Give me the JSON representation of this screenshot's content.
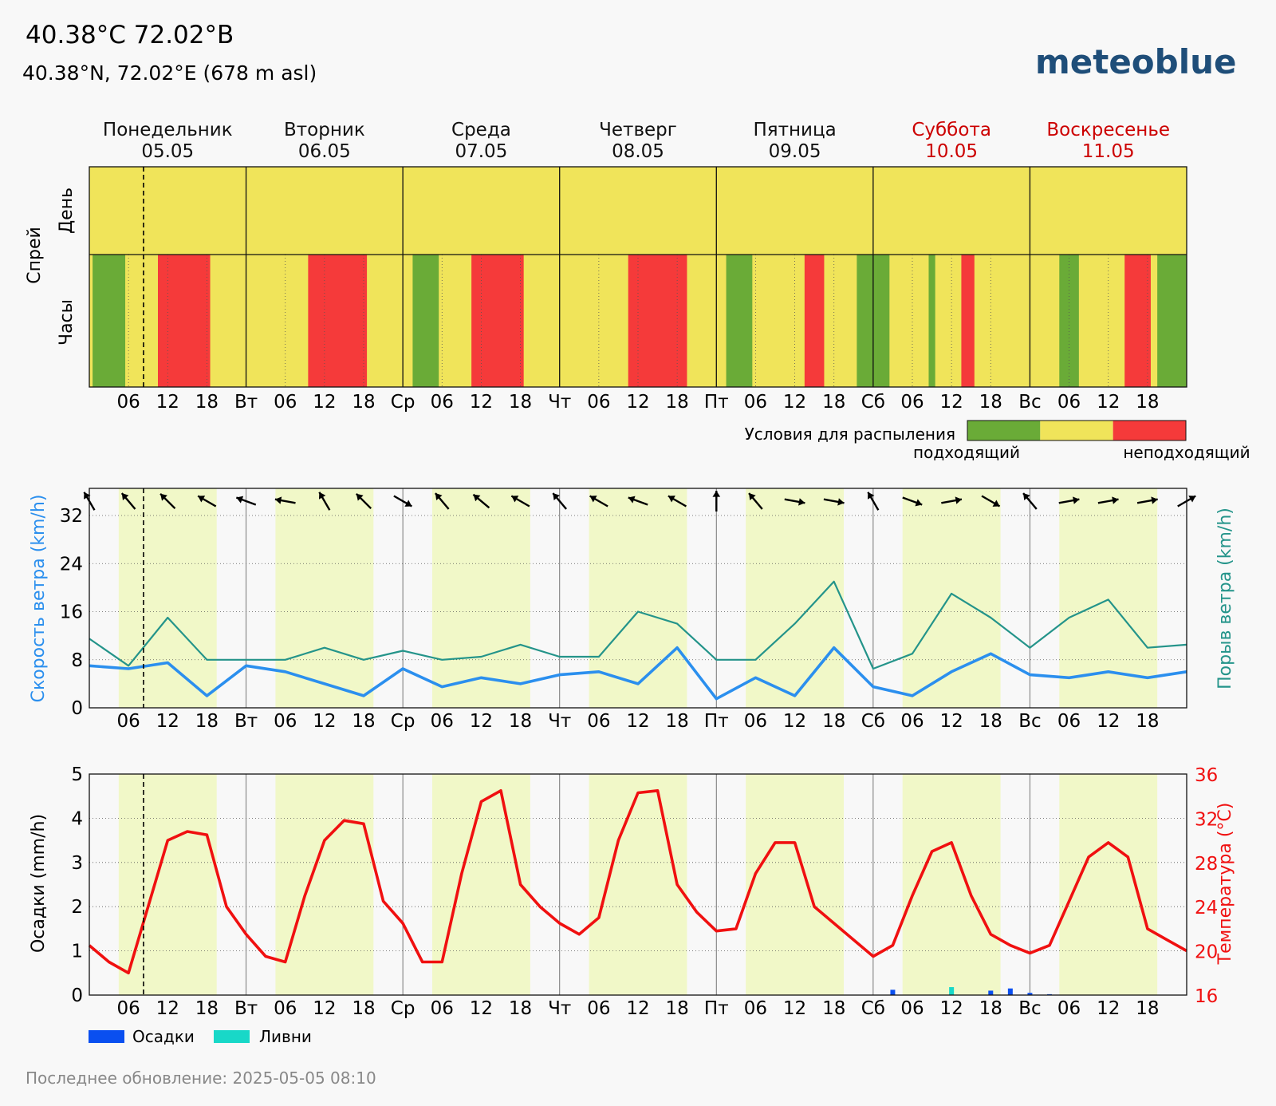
{
  "header": {
    "title": "40.38°C 72.02°B",
    "subtitle": "40.38°N, 72.02°E (678 m asl)",
    "logo": "meteoblue",
    "footer": "Последнее обновление: 2025-05-05 08:10"
  },
  "colors": {
    "good": "#6aab37",
    "medium": "#f0e45a",
    "bad": "#f53a3a",
    "wind": "#2b8fee",
    "gust": "#24948a",
    "temp": "#f01010",
    "precip": "#0a4ff0",
    "shower": "#18d8c8",
    "day_band": "#f1f8c8",
    "weekend": "#cc0000"
  },
  "days": [
    {
      "name": "Понедельник",
      "date": "05.05",
      "abbr": "",
      "weekend": false
    },
    {
      "name": "Вторник",
      "date": "06.05",
      "abbr": "Вт",
      "weekend": false
    },
    {
      "name": "Среда",
      "date": "07.05",
      "abbr": "Ср",
      "weekend": false
    },
    {
      "name": "Четверг",
      "date": "08.05",
      "abbr": "Чт",
      "weekend": false
    },
    {
      "name": "Пятница",
      "date": "09.05",
      "abbr": "Пт",
      "weekend": false
    },
    {
      "name": "Суббота",
      "date": "10.05",
      "abbr": "Сб",
      "weekend": true
    },
    {
      "name": "Воскресенье",
      "date": "11.05",
      "abbr": "Вс",
      "weekend": true
    }
  ],
  "hour_ticks": [
    "06",
    "12",
    "18"
  ],
  "spray": {
    "title": "Спрей",
    "row_day": "День",
    "row_hours": "Часы",
    "legend_title": "Условия для распыления",
    "legend_good": "подходящий",
    "legend_bad": "неподходящий",
    "day_ratings": [
      "medium",
      "medium",
      "medium",
      "medium",
      "medium",
      "medium",
      "medium"
    ],
    "segments": [
      {
        "from": 0.5,
        "to": 5.5,
        "rating": "good"
      },
      {
        "from": 10.5,
        "to": 18.5,
        "rating": "bad"
      },
      {
        "from": 33.5,
        "to": 42.5,
        "rating": "bad"
      },
      {
        "from": 49.5,
        "to": 53.5,
        "rating": "good"
      },
      {
        "from": 58.5,
        "to": 66.5,
        "rating": "bad"
      },
      {
        "from": 82.5,
        "to": 91.5,
        "rating": "bad"
      },
      {
        "from": 97.5,
        "to": 101.5,
        "rating": "good"
      },
      {
        "from": 109.5,
        "to": 112.5,
        "rating": "bad"
      },
      {
        "from": 117.5,
        "to": 120.5,
        "rating": "good"
      },
      {
        "from": 120.5,
        "to": 122.5,
        "rating": "good"
      },
      {
        "from": 128.5,
        "to": 129.5,
        "rating": "good"
      },
      {
        "from": 133.5,
        "to": 135.5,
        "rating": "bad"
      },
      {
        "from": 148.5,
        "to": 151.5,
        "rating": "good"
      },
      {
        "from": 158.5,
        "to": 162.5,
        "rating": "bad"
      },
      {
        "from": 163.5,
        "to": 168,
        "rating": "good"
      }
    ]
  },
  "chart_data": [
    {
      "type": "line",
      "title": "",
      "xlabel": "",
      "ylabel": "Скорость ветра (km/h)",
      "ylabel_right": "Порыв ветра (km/h)",
      "ylim": [
        0,
        36
      ],
      "yticks": [
        0,
        8,
        16,
        24,
        32
      ],
      "x": [
        0,
        6,
        12,
        18,
        24,
        30,
        36,
        42,
        48,
        54,
        60,
        66,
        72,
        78,
        84,
        90,
        96,
        102,
        108,
        114,
        120,
        126,
        132,
        138,
        144,
        150,
        156,
        162,
        168
      ],
      "series": [
        {
          "name": "Скорость ветра",
          "values": [
            7,
            6.5,
            7.5,
            2,
            7,
            6,
            4,
            2,
            6.5,
            3.5,
            5,
            4,
            5.5,
            6,
            4,
            10,
            1.5,
            5,
            2,
            10,
            3.5,
            2,
            6,
            9,
            5.5,
            5,
            6,
            5,
            6
          ]
        },
        {
          "name": "Порыв ветра",
          "values": [
            11.5,
            7,
            15,
            8,
            8,
            8,
            10,
            8,
            9.5,
            8,
            8.5,
            10.5,
            8.5,
            8.5,
            16,
            14,
            8,
            8,
            14,
            21,
            6.5,
            9,
            19,
            15,
            10,
            15,
            18,
            10,
            10.5
          ]
        }
      ],
      "wind_dir_deg": [
        330,
        320,
        315,
        300,
        290,
        280,
        330,
        315,
        120,
        320,
        310,
        300,
        320,
        300,
        290,
        300,
        0,
        320,
        100,
        100,
        330,
        110,
        80,
        120,
        320,
        80,
        80,
        80,
        60
      ]
    },
    {
      "type": "line",
      "title": "",
      "xlabel": "",
      "ylabel": "Осадки (mm/h)",
      "ylabel_right": "Температура (°C)",
      "ylim": [
        0,
        5
      ],
      "ylim_right": [
        16,
        36
      ],
      "yticks": [
        0,
        1,
        2,
        3,
        4,
        5
      ],
      "yticks_right": [
        16,
        20,
        24,
        28,
        32,
        36
      ],
      "x": [
        0,
        3,
        6,
        9,
        12,
        15,
        18,
        21,
        24,
        27,
        30,
        33,
        36,
        39,
        42,
        45,
        48,
        51,
        54,
        57,
        60,
        63,
        66,
        69,
        72,
        75,
        78,
        81,
        84,
        87,
        90,
        93,
        96,
        99,
        102,
        105,
        108,
        111,
        114,
        117,
        120,
        123,
        126,
        129,
        132,
        135,
        138,
        141,
        144,
        147,
        150,
        153,
        156,
        159,
        162,
        165,
        168
      ],
      "series": [
        {
          "name": "Температура",
          "values": [
            20.5,
            19,
            18,
            24,
            30,
            30.8,
            30.5,
            24,
            21.5,
            19.5,
            19,
            25,
            30,
            31.8,
            31.5,
            24.5,
            22.5,
            19,
            19,
            27,
            33.5,
            34.5,
            26,
            24,
            22.5,
            21.5,
            23,
            30,
            34.3,
            34.5,
            26,
            23.5,
            21.8,
            22,
            27,
            29.8,
            29.8,
            24,
            22.5,
            21,
            19.5,
            20.5,
            25,
            29,
            29.8,
            25,
            21.5,
            20.5,
            19.8,
            20.5,
            24.5,
            28.5,
            29.8,
            28.5,
            22,
            21,
            20
          ]
        },
        {
          "name": "Осадки",
          "values": [
            0,
            0,
            0,
            0,
            0,
            0,
            0,
            0,
            0,
            0,
            0,
            0,
            0,
            0,
            0,
            0,
            0,
            0,
            0,
            0,
            0,
            0,
            0,
            0,
            0,
            0,
            0,
            0,
            0,
            0,
            0,
            0,
            0,
            0,
            0,
            0,
            0,
            0,
            0,
            0,
            0,
            0.12,
            0,
            0,
            0,
            0,
            0.1,
            0.15,
            0.05,
            0.02,
            0,
            0,
            0,
            0,
            0,
            0,
            0
          ]
        },
        {
          "name": "Ливни",
          "values": [
            0,
            0,
            0,
            0,
            0,
            0,
            0,
            0,
            0,
            0,
            0,
            0,
            0,
            0,
            0,
            0,
            0,
            0,
            0,
            0,
            0,
            0,
            0,
            0,
            0,
            0,
            0,
            0,
            0,
            0,
            0,
            0,
            0,
            0,
            0,
            0,
            0,
            0,
            0,
            0,
            0,
            0,
            0,
            0,
            0.18,
            0,
            0,
            0,
            0,
            0,
            0,
            0,
            0,
            0,
            0,
            0,
            0
          ]
        }
      ],
      "legend": [
        "Осадки",
        "Ливни"
      ]
    }
  ]
}
